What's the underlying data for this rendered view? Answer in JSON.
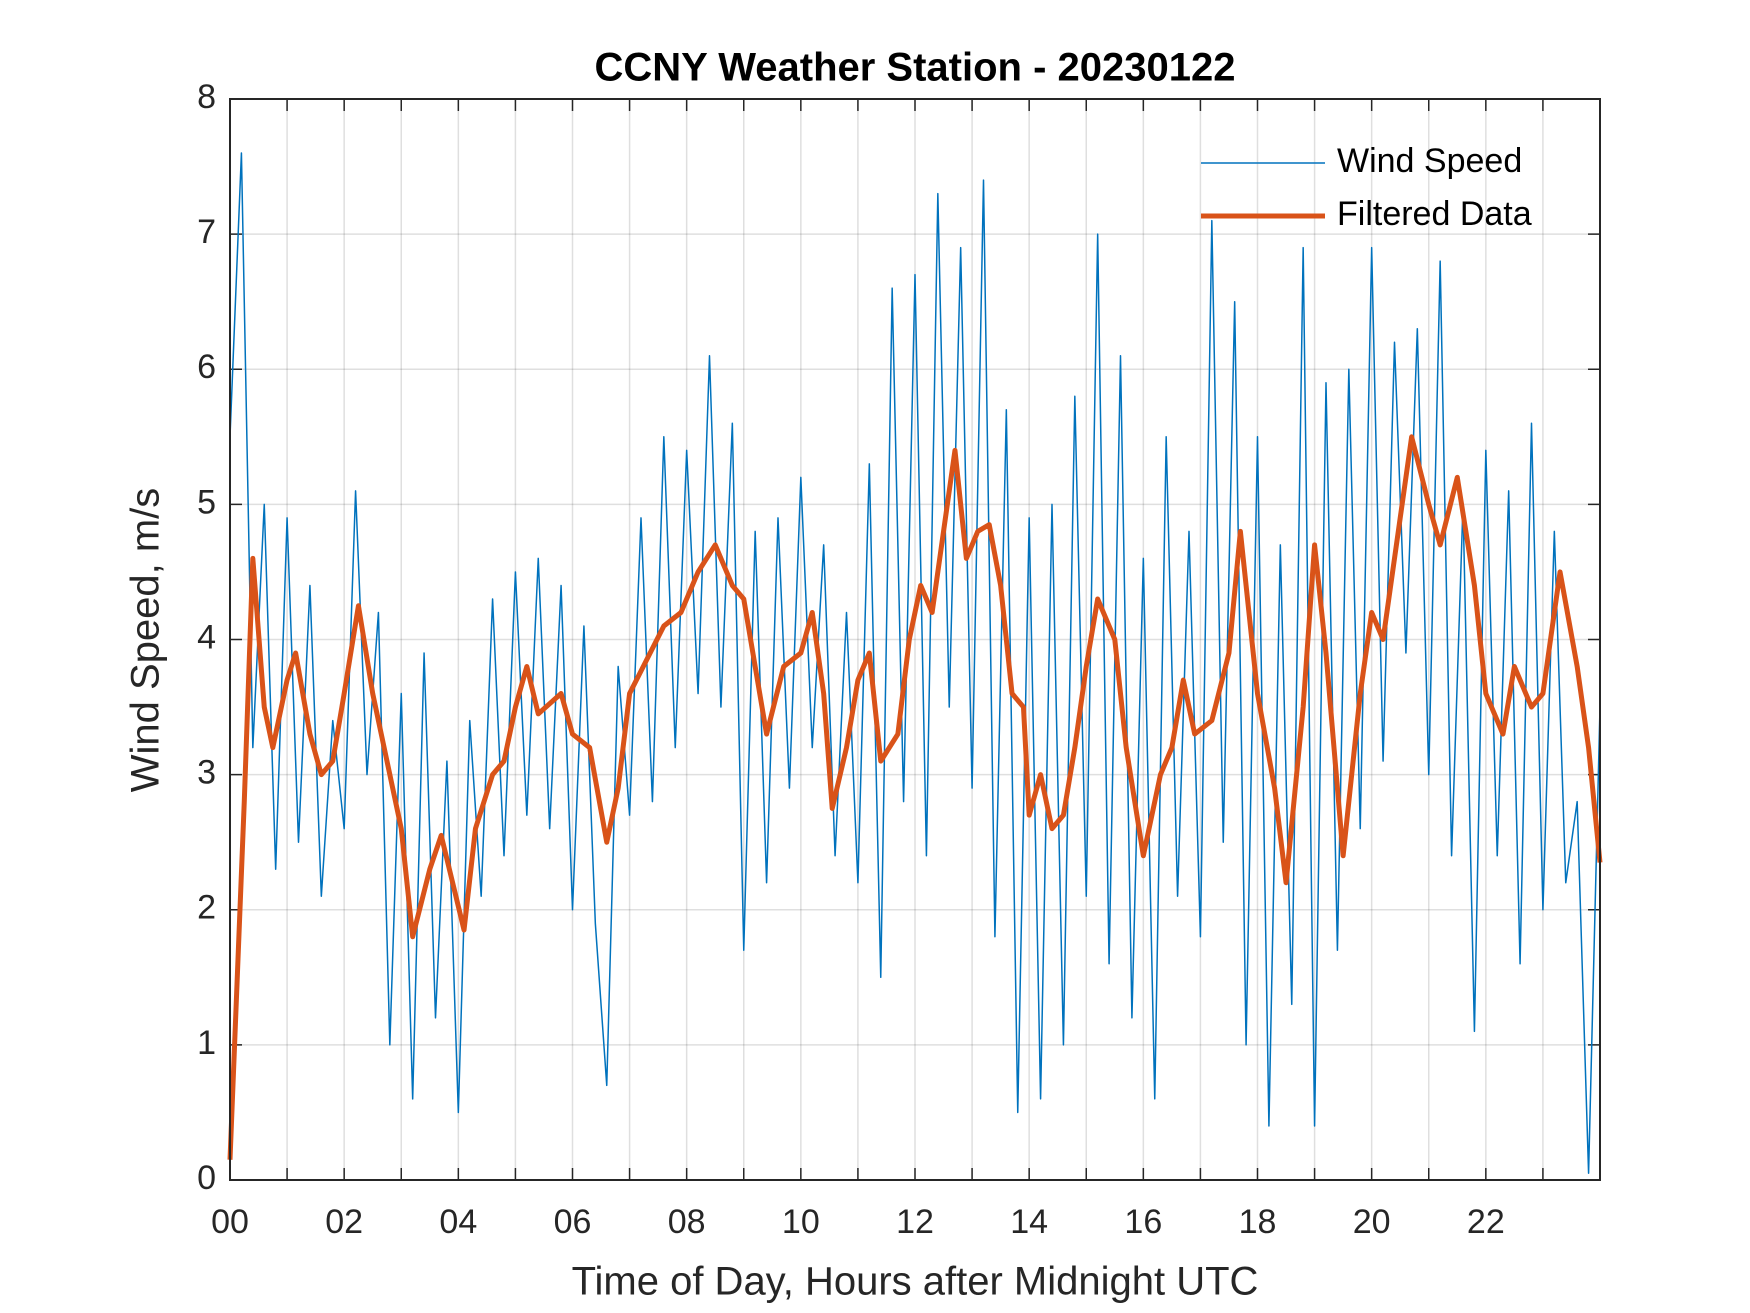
{
  "chart_data": {
    "type": "line",
    "title": "CCNY Weather Station - 20230122",
    "xlabel": "Time of Day, Hours after Midnight UTC",
    "ylabel": "Wind Speed, m/s",
    "xlim": [
      0,
      24
    ],
    "ylim": [
      0,
      8
    ],
    "xticks": [
      {
        "value": 0,
        "label": "00"
      },
      {
        "value": 2,
        "label": "02"
      },
      {
        "value": 4,
        "label": "04"
      },
      {
        "value": 6,
        "label": "06"
      },
      {
        "value": 8,
        "label": "08"
      },
      10,
      12,
      14,
      16,
      18,
      20,
      22
    ],
    "xminorticks": [
      1,
      3,
      5,
      7,
      9,
      11,
      13,
      15,
      17,
      19,
      21,
      23
    ],
    "yticks": [
      0,
      1,
      2,
      3,
      4,
      5,
      6,
      7,
      8
    ],
    "grid": true,
    "legend": "northeast",
    "series": [
      {
        "name": "Wind Speed",
        "color": "#0072BD",
        "width": 1.5,
        "x": [
          0,
          0.2,
          0.4,
          0.6,
          0.8,
          1,
          1.2,
          1.4,
          1.6,
          1.8,
          2,
          2.2,
          2.4,
          2.6,
          2.8,
          3,
          3.2,
          3.4,
          3.6,
          3.8,
          4,
          4.2,
          4.4,
          4.6,
          4.8,
          5,
          5.2,
          5.4,
          5.6,
          5.8,
          6,
          6.2,
          6.4,
          6.6,
          6.8,
          7,
          7.2,
          7.4,
          7.6,
          7.8,
          8,
          8.2,
          8.4,
          8.6,
          8.8,
          9,
          9.2,
          9.4,
          9.6,
          9.8,
          10,
          10.2,
          10.4,
          10.6,
          10.8,
          11,
          11.2,
          11.4,
          11.6,
          11.8,
          12,
          12.2,
          12.4,
          12.6,
          12.8,
          13,
          13.2,
          13.4,
          13.6,
          13.8,
          14,
          14.2,
          14.4,
          14.6,
          14.8,
          15,
          15.2,
          15.4,
          15.6,
          15.8,
          16,
          16.2,
          16.4,
          16.6,
          16.8,
          17,
          17.2,
          17.4,
          17.6,
          17.8,
          18,
          18.2,
          18.4,
          18.6,
          18.8,
          19,
          19.2,
          19.4,
          19.6,
          19.8,
          20,
          20.2,
          20.4,
          20.6,
          20.8,
          21,
          21.2,
          21.4,
          21.6,
          21.8,
          22,
          22.2,
          22.4,
          22.6,
          22.8,
          23,
          23.2,
          23.4,
          23.6,
          23.8,
          24
        ],
        "values": [
          5.5,
          7.6,
          3.2,
          5.0,
          2.3,
          4.9,
          2.5,
          4.4,
          2.1,
          3.4,
          2.6,
          5.1,
          3.0,
          4.2,
          1.0,
          3.6,
          0.6,
          3.9,
          1.2,
          3.1,
          0.5,
          3.4,
          2.1,
          4.3,
          2.4,
          4.5,
          2.7,
          4.6,
          2.6,
          4.4,
          2.0,
          4.1,
          1.9,
          0.7,
          3.8,
          2.7,
          4.9,
          2.8,
          5.5,
          3.2,
          5.4,
          3.6,
          6.1,
          3.5,
          5.6,
          1.7,
          4.8,
          2.2,
          4.9,
          2.9,
          5.2,
          3.2,
          4.7,
          2.4,
          4.2,
          2.2,
          5.3,
          1.5,
          6.6,
          2.8,
          6.7,
          2.4,
          7.3,
          3.5,
          6.9,
          2.9,
          7.4,
          1.8,
          5.7,
          0.5,
          4.9,
          0.6,
          5.0,
          1.0,
          5.8,
          2.1,
          7.0,
          1.6,
          6.1,
          1.2,
          4.6,
          0.6,
          5.5,
          2.1,
          4.8,
          1.8,
          7.1,
          2.5,
          6.5,
          1.0,
          5.5,
          0.4,
          4.7,
          1.3,
          6.9,
          0.4,
          5.9,
          1.7,
          6.0,
          2.6,
          6.9,
          3.1,
          6.2,
          3.9,
          6.3,
          3.0,
          6.8,
          2.4,
          5.0,
          1.1,
          5.4,
          2.4,
          5.1,
          1.6,
          5.6,
          2.0,
          4.8,
          2.2,
          2.8,
          0.05,
          3.5
        ]
      },
      {
        "name": "Filtered Data",
        "color": "#D95319",
        "width": 5,
        "x": [
          0,
          0.25,
          0.4,
          0.6,
          0.75,
          1,
          1.15,
          1.4,
          1.6,
          1.8,
          2,
          2.25,
          2.5,
          2.75,
          3,
          3.2,
          3.5,
          3.7,
          3.9,
          4.1,
          4.3,
          4.6,
          4.8,
          5,
          5.2,
          5.4,
          5.8,
          6,
          6.3,
          6.6,
          6.8,
          7,
          7.3,
          7.6,
          7.9,
          8.2,
          8.5,
          8.8,
          9,
          9.4,
          9.7,
          10,
          10.2,
          10.4,
          10.55,
          10.8,
          11,
          11.2,
          11.4,
          11.7,
          11.9,
          12.1,
          12.3,
          12.5,
          12.7,
          12.9,
          13.1,
          13.3,
          13.5,
          13.7,
          13.9,
          14,
          14.2,
          14.4,
          14.6,
          14.8,
          15,
          15.2,
          15.5,
          15.7,
          16,
          16.3,
          16.5,
          16.7,
          16.9,
          17.2,
          17.5,
          17.7,
          18,
          18.3,
          18.5,
          18.8,
          19,
          19.2,
          19.5,
          19.8,
          20,
          20.2,
          20.5,
          20.7,
          21,
          21.2,
          21.5,
          21.8,
          22,
          22.3,
          22.5,
          22.8,
          23,
          23.3,
          23.6,
          23.8,
          24
        ],
        "values": [
          0.15,
          2.8,
          4.6,
          3.5,
          3.2,
          3.7,
          3.9,
          3.3,
          3.0,
          3.1,
          3.6,
          4.25,
          3.6,
          3.1,
          2.6,
          1.8,
          2.3,
          2.55,
          2.2,
          1.85,
          2.6,
          3.0,
          3.1,
          3.5,
          3.8,
          3.45,
          3.6,
          3.3,
          3.2,
          2.5,
          2.9,
          3.6,
          3.85,
          4.1,
          4.2,
          4.5,
          4.7,
          4.4,
          4.3,
          3.3,
          3.8,
          3.9,
          4.2,
          3.6,
          2.75,
          3.2,
          3.7,
          3.9,
          3.1,
          3.3,
          4.0,
          4.4,
          4.2,
          4.8,
          5.4,
          4.6,
          4.8,
          4.85,
          4.4,
          3.6,
          3.5,
          2.7,
          3.0,
          2.6,
          2.7,
          3.2,
          3.8,
          4.3,
          4.0,
          3.2,
          2.4,
          3.0,
          3.2,
          3.7,
          3.3,
          3.4,
          3.9,
          4.8,
          3.6,
          2.9,
          2.2,
          3.5,
          4.7,
          3.9,
          2.4,
          3.6,
          4.2,
          4.0,
          4.9,
          5.5,
          5.0,
          4.7,
          5.2,
          4.4,
          3.6,
          3.3,
          3.8,
          3.5,
          3.6,
          4.5,
          3.8,
          3.2,
          2.35
        ]
      }
    ]
  }
}
